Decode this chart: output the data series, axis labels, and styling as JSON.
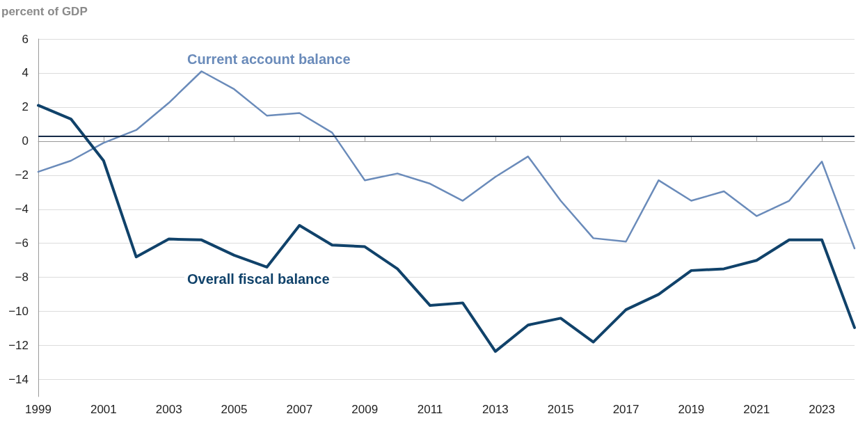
{
  "chart_data": {
    "type": "line",
    "ylabel": "percent of GDP",
    "x": [
      1999,
      2000,
      2001,
      2002,
      2003,
      2004,
      2005,
      2006,
      2007,
      2008,
      2009,
      2010,
      2011,
      2012,
      2013,
      2014,
      2015,
      2016,
      2017,
      2018,
      2019,
      2020,
      2021,
      2022,
      2023,
      2024
    ],
    "series": [
      {
        "name": "Current account balance",
        "color": "#6a8bba",
        "values": [
          -1.8,
          -1.15,
          -0.1,
          0.65,
          2.25,
          4.1,
          3.05,
          1.5,
          1.65,
          0.5,
          -2.3,
          -1.9,
          -2.5,
          -3.5,
          -2.1,
          -0.9,
          -3.5,
          -5.7,
          -5.9,
          -2.3,
          -3.5,
          -2.95,
          -4.4,
          -3.5,
          -1.2,
          -6.3
        ]
      },
      {
        "name": "Overall fiscal balance",
        "color": "#10426a",
        "values": [
          2.1,
          1.3,
          -1.15,
          -6.8,
          -5.75,
          -5.8,
          -6.7,
          -7.4,
          -4.95,
          -6.1,
          -6.2,
          -7.5,
          -9.65,
          -9.5,
          -12.35,
          -10.8,
          -10.4,
          -11.8,
          -9.9,
          -9.0,
          -7.6,
          -7.5,
          -7.0,
          -5.8,
          -5.8,
          -10.95
        ]
      }
    ],
    "ref_lines": [
      {
        "axis": "y",
        "value": 0.3,
        "color": "#142a47"
      }
    ],
    "xlim": [
      1999,
      2024
    ],
    "xticks": [
      1999,
      2001,
      2003,
      2005,
      2007,
      2009,
      2011,
      2013,
      2015,
      2017,
      2019,
      2021,
      2023
    ],
    "ylim": [
      -15,
      6
    ],
    "yticks": [
      -14,
      -12,
      -10,
      -8,
      -6,
      -4,
      -2,
      0,
      2,
      4,
      6
    ],
    "grid": "y",
    "legend": false,
    "marker": "none",
    "line_style": "solid"
  }
}
